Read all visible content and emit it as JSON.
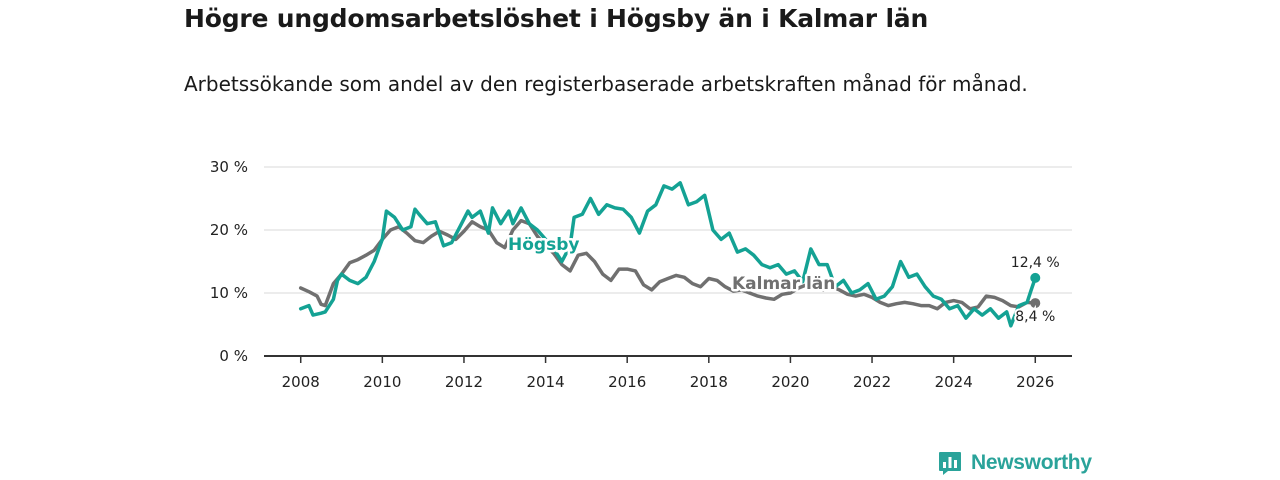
{
  "title": "Högre ungdomsarbetslöshet i Högsby än i Kalmar län",
  "subtitle": "Arbetssökande som andel av den registerbaserade arbetskraften månad för månad.",
  "brand": {
    "name": "Newsworthy",
    "icon": "bar-chart-speech-icon"
  },
  "colors": {
    "hogsby": "#14a294",
    "kalmar": "#707070",
    "grid": "#d9d9d9",
    "axis": "#333333",
    "brand": "#2aa39a"
  },
  "chart_data": {
    "type": "line",
    "title": "Högre ungdomsarbetslöshet i Högsby än i Kalmar län",
    "subtitle": "Arbetssökande som andel av den registerbaserade arbetskraften månad för månad.",
    "xlabel": "",
    "ylabel": "",
    "xlim": [
      2007.1,
      2026.9
    ],
    "ylim": [
      0,
      30
    ],
    "x_ticks": [
      2008,
      2010,
      2012,
      2014,
      2016,
      2018,
      2020,
      2022,
      2024,
      2026
    ],
    "x_tick_labels": [
      "2008",
      "2010",
      "2012",
      "2014",
      "2016",
      "2018",
      "2020",
      "2022",
      "2024",
      "2026"
    ],
    "y_ticks": [
      0,
      10,
      20,
      30
    ],
    "y_tick_labels": [
      "0 %",
      "10 %",
      "20 %",
      "30 %"
    ],
    "grid": "horizontal",
    "series": [
      {
        "name": "Kalmar län",
        "label": "Kalmar län",
        "color": "#707070",
        "end_value": 8.4,
        "end_label": "8,4 %",
        "points": [
          [
            2008.0,
            10.8
          ],
          [
            2008.2,
            10.2
          ],
          [
            2008.4,
            9.5
          ],
          [
            2008.5,
            8.2
          ],
          [
            2008.6,
            8.0
          ],
          [
            2008.8,
            11.5
          ],
          [
            2009.0,
            13.0
          ],
          [
            2009.2,
            14.8
          ],
          [
            2009.4,
            15.3
          ],
          [
            2009.6,
            16.0
          ],
          [
            2009.8,
            16.8
          ],
          [
            2010.0,
            18.5
          ],
          [
            2010.2,
            20.0
          ],
          [
            2010.4,
            20.5
          ],
          [
            2010.6,
            19.5
          ],
          [
            2010.8,
            18.3
          ],
          [
            2011.0,
            18.0
          ],
          [
            2011.2,
            19.0
          ],
          [
            2011.4,
            19.8
          ],
          [
            2011.6,
            19.2
          ],
          [
            2011.8,
            18.5
          ],
          [
            2012.0,
            19.8
          ],
          [
            2012.2,
            21.3
          ],
          [
            2012.4,
            20.5
          ],
          [
            2012.6,
            20.0
          ],
          [
            2012.8,
            18.0
          ],
          [
            2013.0,
            17.2
          ],
          [
            2013.2,
            20.0
          ],
          [
            2013.4,
            21.5
          ],
          [
            2013.6,
            21.0
          ],
          [
            2013.8,
            19.0
          ],
          [
            2014.0,
            17.5
          ],
          [
            2014.2,
            16.3
          ],
          [
            2014.4,
            14.5
          ],
          [
            2014.6,
            13.5
          ],
          [
            2014.8,
            16.0
          ],
          [
            2015.0,
            16.3
          ],
          [
            2015.2,
            15.0
          ],
          [
            2015.4,
            13.0
          ],
          [
            2015.6,
            12.0
          ],
          [
            2015.8,
            13.8
          ],
          [
            2016.0,
            13.8
          ],
          [
            2016.2,
            13.5
          ],
          [
            2016.4,
            11.3
          ],
          [
            2016.6,
            10.5
          ],
          [
            2016.8,
            11.8
          ],
          [
            2017.0,
            12.3
          ],
          [
            2017.2,
            12.8
          ],
          [
            2017.4,
            12.5
          ],
          [
            2017.6,
            11.5
          ],
          [
            2017.8,
            11.0
          ],
          [
            2018.0,
            12.3
          ],
          [
            2018.2,
            12.0
          ],
          [
            2018.4,
            11.0
          ],
          [
            2018.6,
            10.3
          ],
          [
            2018.8,
            10.5
          ],
          [
            2019.0,
            10.0
          ],
          [
            2019.2,
            9.5
          ],
          [
            2019.4,
            9.2
          ],
          [
            2019.6,
            9.0
          ],
          [
            2019.8,
            9.8
          ],
          [
            2020.0,
            10.0
          ],
          [
            2020.2,
            10.8
          ],
          [
            2020.4,
            11.3
          ],
          [
            2020.6,
            11.0
          ],
          [
            2020.8,
            10.5
          ],
          [
            2021.0,
            11.0
          ],
          [
            2021.2,
            10.5
          ],
          [
            2021.4,
            9.8
          ],
          [
            2021.6,
            9.5
          ],
          [
            2021.8,
            9.8
          ],
          [
            2022.0,
            9.3
          ],
          [
            2022.2,
            8.5
          ],
          [
            2022.4,
            8.0
          ],
          [
            2022.6,
            8.3
          ],
          [
            2022.8,
            8.5
          ],
          [
            2023.0,
            8.3
          ],
          [
            2023.2,
            8.0
          ],
          [
            2023.4,
            8.0
          ],
          [
            2023.6,
            7.5
          ],
          [
            2023.8,
            8.5
          ],
          [
            2024.0,
            8.8
          ],
          [
            2024.2,
            8.5
          ],
          [
            2024.4,
            7.5
          ],
          [
            2024.6,
            7.8
          ],
          [
            2024.8,
            9.5
          ],
          [
            2025.0,
            9.3
          ],
          [
            2025.2,
            8.8
          ],
          [
            2025.4,
            8.0
          ],
          [
            2025.6,
            7.8
          ],
          [
            2025.8,
            8.5
          ],
          [
            2026.0,
            8.4
          ]
        ]
      },
      {
        "name": "Högsby",
        "label": "Högsby",
        "color": "#14a294",
        "end_value": 12.4,
        "end_label": "12,4 %",
        "points": [
          [
            2008.0,
            7.5
          ],
          [
            2008.2,
            8.0
          ],
          [
            2008.3,
            6.5
          ],
          [
            2008.5,
            6.8
          ],
          [
            2008.6,
            7.0
          ],
          [
            2008.8,
            9.0
          ],
          [
            2008.9,
            12.0
          ],
          [
            2009.0,
            13.0
          ],
          [
            2009.2,
            12.0
          ],
          [
            2009.4,
            11.5
          ],
          [
            2009.6,
            12.5
          ],
          [
            2009.8,
            15.0
          ],
          [
            2010.0,
            18.5
          ],
          [
            2010.1,
            23.0
          ],
          [
            2010.3,
            22.0
          ],
          [
            2010.5,
            20.0
          ],
          [
            2010.7,
            20.5
          ],
          [
            2010.8,
            23.3
          ],
          [
            2010.9,
            22.5
          ],
          [
            2011.1,
            21.0
          ],
          [
            2011.3,
            21.3
          ],
          [
            2011.5,
            17.5
          ],
          [
            2011.7,
            18.0
          ],
          [
            2011.9,
            20.5
          ],
          [
            2012.1,
            23.0
          ],
          [
            2012.2,
            22.0
          ],
          [
            2012.4,
            23.0
          ],
          [
            2012.6,
            19.5
          ],
          [
            2012.7,
            23.5
          ],
          [
            2012.9,
            21.0
          ],
          [
            2013.1,
            23.0
          ],
          [
            2013.2,
            21.0
          ],
          [
            2013.4,
            23.5
          ],
          [
            2013.6,
            21.0
          ],
          [
            2013.8,
            20.0
          ],
          [
            2014.0,
            18.5
          ],
          [
            2014.2,
            17.0
          ],
          [
            2014.4,
            15.0
          ],
          [
            2014.6,
            17.5
          ],
          [
            2014.7,
            22.0
          ],
          [
            2014.9,
            22.5
          ],
          [
            2015.1,
            25.0
          ],
          [
            2015.3,
            22.5
          ],
          [
            2015.5,
            24.0
          ],
          [
            2015.7,
            23.5
          ],
          [
            2015.9,
            23.3
          ],
          [
            2016.1,
            22.0
          ],
          [
            2016.3,
            19.5
          ],
          [
            2016.5,
            23.0
          ],
          [
            2016.7,
            24.0
          ],
          [
            2016.9,
            27.0
          ],
          [
            2017.1,
            26.5
          ],
          [
            2017.3,
            27.5
          ],
          [
            2017.5,
            24.0
          ],
          [
            2017.7,
            24.5
          ],
          [
            2017.9,
            25.5
          ],
          [
            2018.1,
            20.0
          ],
          [
            2018.3,
            18.5
          ],
          [
            2018.5,
            19.5
          ],
          [
            2018.7,
            16.5
          ],
          [
            2018.9,
            17.0
          ],
          [
            2019.1,
            16.0
          ],
          [
            2019.3,
            14.5
          ],
          [
            2019.5,
            14.0
          ],
          [
            2019.7,
            14.5
          ],
          [
            2019.9,
            13.0
          ],
          [
            2020.1,
            13.5
          ],
          [
            2020.3,
            11.8
          ],
          [
            2020.5,
            17.0
          ],
          [
            2020.7,
            14.5
          ],
          [
            2020.9,
            14.5
          ],
          [
            2021.1,
            11.0
          ],
          [
            2021.3,
            12.0
          ],
          [
            2021.5,
            10.0
          ],
          [
            2021.7,
            10.5
          ],
          [
            2021.9,
            11.5
          ],
          [
            2022.1,
            9.0
          ],
          [
            2022.3,
            9.5
          ],
          [
            2022.5,
            11.0
          ],
          [
            2022.7,
            15.0
          ],
          [
            2022.9,
            12.5
          ],
          [
            2023.1,
            13.0
          ],
          [
            2023.3,
            11.0
          ],
          [
            2023.5,
            9.5
          ],
          [
            2023.7,
            9.0
          ],
          [
            2023.9,
            7.5
          ],
          [
            2024.1,
            8.0
          ],
          [
            2024.3,
            6.0
          ],
          [
            2024.5,
            7.5
          ],
          [
            2024.7,
            6.5
          ],
          [
            2024.9,
            7.5
          ],
          [
            2025.1,
            6.0
          ],
          [
            2025.3,
            7.0
          ],
          [
            2025.4,
            4.8
          ],
          [
            2025.6,
            8.0
          ],
          [
            2025.8,
            8.5
          ],
          [
            2025.9,
            10.5
          ],
          [
            2026.0,
            12.4
          ]
        ]
      }
    ]
  }
}
